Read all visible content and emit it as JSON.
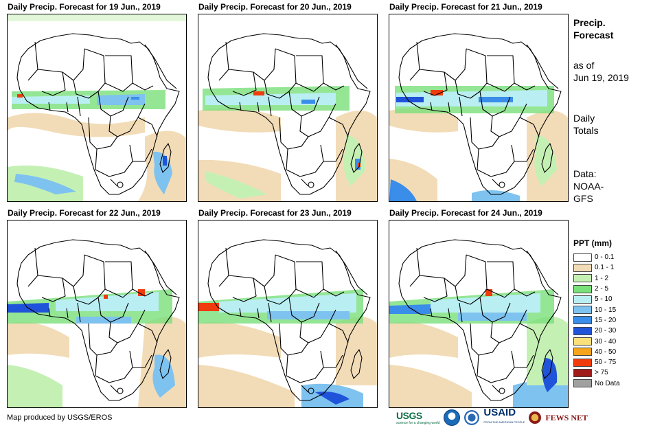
{
  "panels": [
    {
      "title": "Daily Precip. Forecast for 19 Jun., 2019"
    },
    {
      "title": "Daily Precip. Forecast for 20 Jun., 2019"
    },
    {
      "title": "Daily Precip. Forecast for 21 Jun., 2019"
    },
    {
      "title": "Daily Precip. Forecast for 22 Jun., 2019"
    },
    {
      "title": "Daily Precip. Forecast for 23 Jun., 2019"
    },
    {
      "title": "Daily Precip. Forecast for 24 Jun., 2019"
    }
  ],
  "side": {
    "title_line1": "Precip.",
    "title_line2": "Forecast",
    "asof_line1": "as of",
    "asof_line2": "Jun 19, 2019",
    "daily_line1": "Daily",
    "daily_line2": "Totals",
    "source_line1": "Data:",
    "source_line2": "NOAA-",
    "source_line3": "GFS"
  },
  "legend": {
    "title": "PPT (mm)",
    "items": [
      {
        "label": "0 - 0.1",
        "color": "#ffffff"
      },
      {
        "label": "0.1 - 1",
        "color": "#f2dcb7"
      },
      {
        "label": "1 - 2",
        "color": "#c5f0b4"
      },
      {
        "label": "2 - 5",
        "color": "#79e07a"
      },
      {
        "label": "5 - 10",
        "color": "#b9eef2"
      },
      {
        "label": "10 - 15",
        "color": "#7ec2f0"
      },
      {
        "label": "15 - 20",
        "color": "#3a8de8"
      },
      {
        "label": "20 - 30",
        "color": "#1f53d9"
      },
      {
        "label": "30 - 40",
        "color": "#fbe07a"
      },
      {
        "label": "40 - 50",
        "color": "#f5a41b"
      },
      {
        "label": "50 - 75",
        "color": "#f03c0c"
      },
      {
        "label": "> 75",
        "color": "#a01a1a"
      },
      {
        "label": "No Data",
        "color": "#a0a0a0"
      }
    ]
  },
  "footer": {
    "credit": "Map produced by USGS/EROS",
    "logo_usgs": "USGS",
    "logo_usgs_tagline": "science for a changing world",
    "logo_usaid": "USAID",
    "logo_usaid_tagline": "FROM THE AMERICAN PEOPLE",
    "logo_fews": "FEWS NET"
  }
}
